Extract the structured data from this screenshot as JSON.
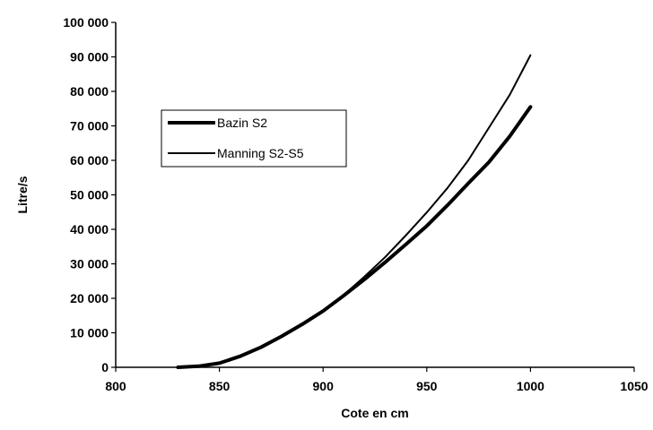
{
  "chart_data": {
    "type": "line",
    "title": "",
    "xlabel": "Cote en cm",
    "ylabel": "Litre/s",
    "xlim": [
      800,
      1050
    ],
    "ylim": [
      0,
      100000
    ],
    "x_ticks": [
      800,
      850,
      900,
      950,
      1000,
      1050
    ],
    "x_tick_labels": [
      "800",
      "850",
      "900",
      "950",
      "1000",
      "1050"
    ],
    "y_ticks": [
      0,
      10000,
      20000,
      30000,
      40000,
      50000,
      60000,
      70000,
      80000,
      90000,
      100000
    ],
    "y_tick_labels": [
      "0",
      "10 000",
      "20 000",
      "30 000",
      "40 000",
      "50 000",
      "60 000",
      "70 000",
      "80 000",
      "90 000",
      "100 000"
    ],
    "grid": false,
    "legend_position": "upper-left, inside plot",
    "series": [
      {
        "name": "Bazin S2",
        "line_style": "thick",
        "color": "#000000",
        "x": [
          830,
          840,
          850,
          860,
          870,
          880,
          890,
          900,
          910,
          920,
          930,
          940,
          950,
          960,
          970,
          980,
          990,
          1000
        ],
        "y": [
          0,
          300,
          1200,
          3200,
          5800,
          9000,
          12500,
          16300,
          20800,
          25500,
          30500,
          35700,
          41000,
          47000,
          53300,
          59500,
          67000,
          75500
        ]
      },
      {
        "name": "Manning S2-S5",
        "line_style": "thin",
        "color": "#000000",
        "x": [
          830,
          840,
          850,
          860,
          870,
          880,
          890,
          900,
          910,
          920,
          930,
          940,
          950,
          960,
          970,
          980,
          990,
          1000
        ],
        "y": [
          0,
          300,
          1200,
          3100,
          5700,
          8900,
          12500,
          16300,
          21000,
          26300,
          32000,
          38300,
          44900,
          52000,
          60000,
          69500,
          79000,
          90500
        ]
      }
    ]
  }
}
